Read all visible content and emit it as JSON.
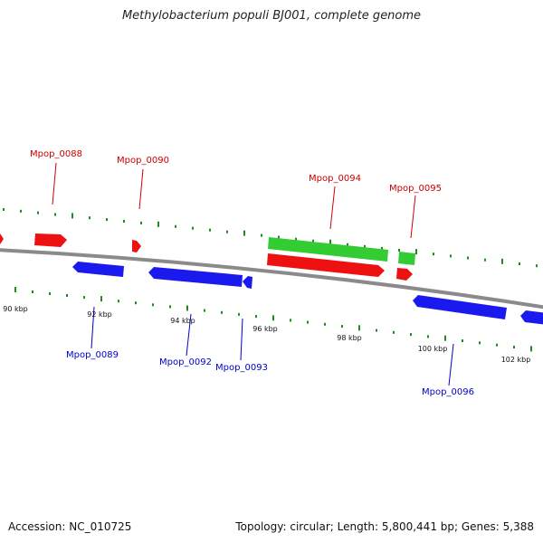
{
  "title": "Methylobacterium populi BJ001, complete genome",
  "footer": {
    "accession": "Accession: NC_010725",
    "summary": "Topology: circular; Length: 5,800,441 bp; Genes: 5,388"
  },
  "colors": {
    "background": "#ffffff",
    "backbone": "#8a8a8a",
    "tick": "#1f8a1f",
    "forward_gene": "#ee1111",
    "reverse_gene": "#1a1aee",
    "rna_gene": "#33cc33",
    "forward_label": "#cc0000",
    "reverse_label": "#0000cc"
  },
  "scale_labels": [
    "90 kbp",
    "92 kbp",
    "94 kbp",
    "96 kbp",
    "98 kbp",
    "100 kbp",
    "102 kbp"
  ],
  "gene_labels": {
    "top": [
      "Mpop_0088",
      "Mpop_0090",
      "Mpop_0094",
      "Mpop_0095"
    ],
    "bottom": [
      "Mpop_0089",
      "Mpop_0092",
      "Mpop_0093",
      "Mpop_0096"
    ]
  }
}
